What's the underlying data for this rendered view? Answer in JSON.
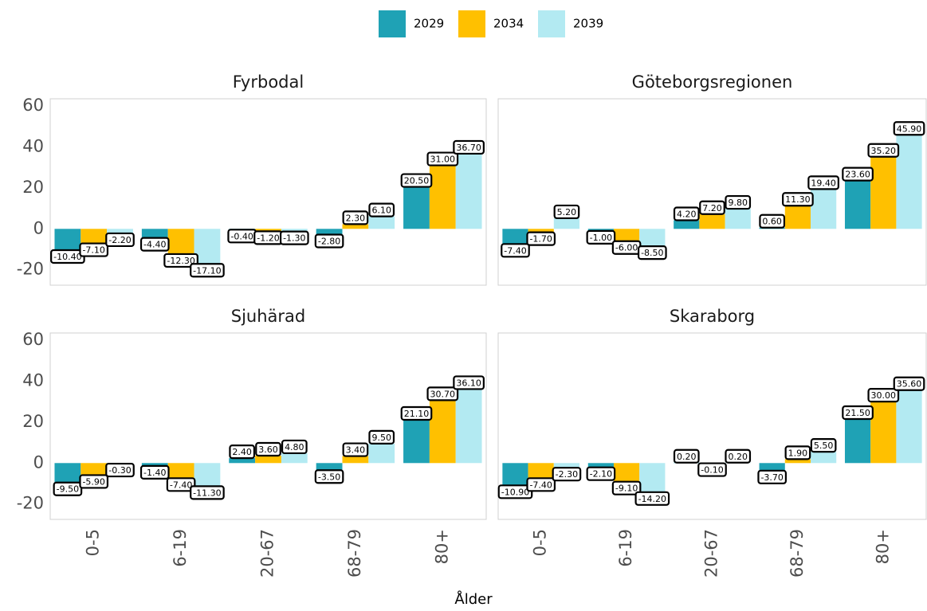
{
  "chart_data": [
    {
      "type": "bar",
      "title": "Fyrbodal",
      "categories": [
        "0-5",
        "6-19",
        "20-67",
        "68-79",
        "80+"
      ],
      "series": [
        {
          "name": "2029",
          "color": "#1fa2b5",
          "values": [
            -10.4,
            -4.4,
            -0.4,
            -2.8,
            20.5
          ],
          "value_labels": [
            "-10.40",
            "-4.40",
            "-0.40",
            "-2.80",
            "20.50"
          ]
        },
        {
          "name": "2034",
          "color": "#ffc000",
          "values": [
            -7.1,
            -12.3,
            -1.2,
            2.3,
            31.0
          ],
          "value_labels": [
            "-7.10",
            "-12.30",
            "-1.20",
            "2.30",
            "31.00"
          ]
        },
        {
          "name": "2039",
          "color": "#b3eaf2",
          "values": [
            -2.2,
            -17.1,
            -1.3,
            6.1,
            36.7
          ],
          "value_labels": [
            "-2.20",
            "-17.10",
            "-1.30",
            "6.10",
            "36.70"
          ]
        }
      ],
      "ylim": [
        -27.5,
        63.5
      ],
      "yticks": [
        -20,
        0,
        20,
        40,
        60
      ],
      "grid": false,
      "legend": "top"
    },
    {
      "type": "bar",
      "title": "Göteborgsregionen",
      "categories": [
        "0-5",
        "6-19",
        "20-67",
        "68-79",
        "80+"
      ],
      "series": [
        {
          "name": "2029",
          "color": "#1fa2b5",
          "values": [
            -7.4,
            -1.0,
            4.2,
            0.6,
            23.6
          ],
          "value_labels": [
            "-7.40",
            "-1.00",
            "4.20",
            "0.60",
            "23.60"
          ]
        },
        {
          "name": "2034",
          "color": "#ffc000",
          "values": [
            -1.7,
            -6.0,
            7.2,
            11.3,
            35.2
          ],
          "value_labels": [
            "-1.70",
            "-6.00",
            "7.20",
            "11.30",
            "35.20"
          ]
        },
        {
          "name": "2039",
          "color": "#b3eaf2",
          "values": [
            5.2,
            -8.5,
            9.8,
            19.4,
            45.9
          ],
          "value_labels": [
            "5.20",
            "-8.50",
            "9.80",
            "19.40",
            "45.90"
          ]
        }
      ],
      "ylim": [
        -27.5,
        63.5
      ],
      "yticks": [
        -20,
        0,
        20,
        40,
        60
      ],
      "grid": false
    },
    {
      "type": "bar",
      "title": "Sjuhärad",
      "xlabel": "Ålder",
      "categories": [
        "0-5",
        "6-19",
        "20-67",
        "68-79",
        "80+"
      ],
      "series": [
        {
          "name": "2029",
          "color": "#1fa2b5",
          "values": [
            -9.5,
            -1.4,
            2.4,
            -3.5,
            21.1
          ],
          "value_labels": [
            "-9.50",
            "-1.40",
            "2.40",
            "-3.50",
            "21.10"
          ]
        },
        {
          "name": "2034",
          "color": "#ffc000",
          "values": [
            -5.9,
            -7.4,
            3.6,
            3.4,
            30.7
          ],
          "value_labels": [
            "-5.90",
            "-7.40",
            "3.60",
            "3.40",
            "30.70"
          ]
        },
        {
          "name": "2039",
          "color": "#b3eaf2",
          "values": [
            -0.3,
            -11.3,
            4.8,
            9.5,
            36.1
          ],
          "value_labels": [
            "-0.30",
            "-11.30",
            "4.80",
            "9.50",
            "36.10"
          ]
        }
      ],
      "ylim": [
        -27.5,
        63.5
      ],
      "yticks": [
        -20,
        0,
        20,
        40,
        60
      ],
      "grid": false
    },
    {
      "type": "bar",
      "title": "Skaraborg",
      "categories": [
        "0-5",
        "6-19",
        "20-67",
        "68-79",
        "80+"
      ],
      "series": [
        {
          "name": "2029",
          "color": "#1fa2b5",
          "values": [
            -10.9,
            -2.1,
            0.2,
            -3.7,
            21.5
          ],
          "value_labels": [
            "-10.90",
            "-2.10",
            "0.20",
            "-3.70",
            "21.50"
          ]
        },
        {
          "name": "2034",
          "color": "#ffc000",
          "values": [
            -7.4,
            -9.1,
            -0.1,
            1.9,
            30.0
          ],
          "value_labels": [
            "-7.40",
            "-9.10",
            "-0.10",
            "1.90",
            "30.00"
          ]
        },
        {
          "name": "2039",
          "color": "#b3eaf2",
          "values": [
            -2.3,
            -14.2,
            0.2,
            5.5,
            35.6
          ],
          "value_labels": [
            "-2.30",
            "-14.20",
            "0.20",
            "5.50",
            "35.60"
          ]
        }
      ],
      "ylim": [
        -27.5,
        63.5
      ],
      "yticks": [
        -20,
        0,
        20,
        40,
        60
      ],
      "grid": false
    }
  ]
}
